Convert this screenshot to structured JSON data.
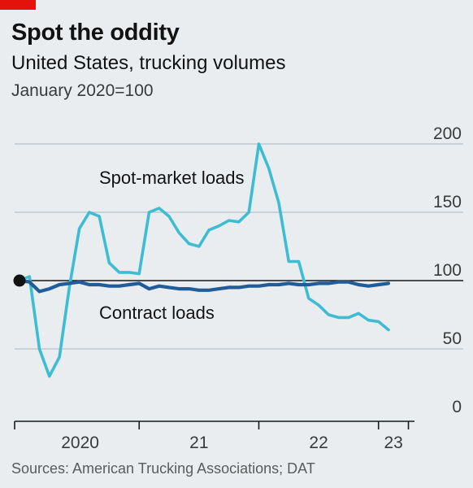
{
  "header": {
    "title": "Spot the oddity",
    "subtitle": "United States, trucking volumes",
    "unit_note": "January 2020=100"
  },
  "source": "Sources: American Trucking Associations; DAT",
  "colors": {
    "spot": "#3ebcd2",
    "contract": "#1f5c99",
    "brand_red": "#e3120b",
    "background": "#e9edf0"
  },
  "chart_data": {
    "type": "line",
    "title": "Spot the oddity",
    "subtitle": "United States, trucking volumes",
    "ylabel": "January 2020=100",
    "ylim": [
      0,
      200
    ],
    "yticks": [
      "0",
      "50",
      "100",
      "150",
      "200"
    ],
    "x_ticks": [
      "2020",
      "21",
      "22",
      "23"
    ],
    "x_range": [
      "2020-01",
      "2023-04"
    ],
    "reference_line": 100,
    "base_marker": {
      "x": "2020-01",
      "y": 100
    },
    "annotations": [
      "Spot-market loads",
      "Contract loads"
    ],
    "series": [
      {
        "name": "Spot-market loads",
        "color": "#3ebcd2",
        "points": [
          {
            "x": "2020-01",
            "y": 100
          },
          {
            "x": "2020-02",
            "y": 103
          },
          {
            "x": "2020-03",
            "y": 50
          },
          {
            "x": "2020-04",
            "y": 30
          },
          {
            "x": "2020-05",
            "y": 44
          },
          {
            "x": "2020-06",
            "y": 95
          },
          {
            "x": "2020-07",
            "y": 138
          },
          {
            "x": "2020-08",
            "y": 150
          },
          {
            "x": "2020-09",
            "y": 147
          },
          {
            "x": "2020-10",
            "y": 113
          },
          {
            "x": "2020-11",
            "y": 106
          },
          {
            "x": "2020-12",
            "y": 106
          },
          {
            "x": "2021-01",
            "y": 105
          },
          {
            "x": "2021-02",
            "y": 150
          },
          {
            "x": "2021-03",
            "y": 153
          },
          {
            "x": "2021-04",
            "y": 147
          },
          {
            "x": "2021-05",
            "y": 135
          },
          {
            "x": "2021-06",
            "y": 127
          },
          {
            "x": "2021-07",
            "y": 125
          },
          {
            "x": "2021-08",
            "y": 137
          },
          {
            "x": "2021-09",
            "y": 140
          },
          {
            "x": "2021-10",
            "y": 144
          },
          {
            "x": "2021-11",
            "y": 143
          },
          {
            "x": "2021-12",
            "y": 150
          },
          {
            "x": "2022-01",
            "y": 200
          },
          {
            "x": "2022-02",
            "y": 182
          },
          {
            "x": "2022-03",
            "y": 157
          },
          {
            "x": "2022-04",
            "y": 114
          },
          {
            "x": "2022-05",
            "y": 114
          },
          {
            "x": "2022-06",
            "y": 87
          },
          {
            "x": "2022-07",
            "y": 82
          },
          {
            "x": "2022-08",
            "y": 75
          },
          {
            "x": "2022-09",
            "y": 73
          },
          {
            "x": "2022-10",
            "y": 73
          },
          {
            "x": "2022-11",
            "y": 76
          },
          {
            "x": "2022-12",
            "y": 71
          },
          {
            "x": "2023-01",
            "y": 70
          },
          {
            "x": "2023-02",
            "y": 64
          }
        ]
      },
      {
        "name": "Contract loads",
        "color": "#1f5c99",
        "points": [
          {
            "x": "2020-01",
            "y": 100
          },
          {
            "x": "2020-02",
            "y": 99
          },
          {
            "x": "2020-03",
            "y": 92
          },
          {
            "x": "2020-04",
            "y": 94
          },
          {
            "x": "2020-05",
            "y": 97
          },
          {
            "x": "2020-06",
            "y": 98
          },
          {
            "x": "2020-07",
            "y": 99
          },
          {
            "x": "2020-08",
            "y": 97
          },
          {
            "x": "2020-09",
            "y": 97
          },
          {
            "x": "2020-10",
            "y": 96
          },
          {
            "x": "2020-11",
            "y": 96
          },
          {
            "x": "2020-12",
            "y": 97
          },
          {
            "x": "2021-01",
            "y": 98
          },
          {
            "x": "2021-02",
            "y": 94
          },
          {
            "x": "2021-03",
            "y": 96
          },
          {
            "x": "2021-04",
            "y": 95
          },
          {
            "x": "2021-05",
            "y": 94
          },
          {
            "x": "2021-06",
            "y": 94
          },
          {
            "x": "2021-07",
            "y": 93
          },
          {
            "x": "2021-08",
            "y": 93
          },
          {
            "x": "2021-09",
            "y": 94
          },
          {
            "x": "2021-10",
            "y": 95
          },
          {
            "x": "2021-11",
            "y": 95
          },
          {
            "x": "2021-12",
            "y": 96
          },
          {
            "x": "2022-01",
            "y": 96
          },
          {
            "x": "2022-02",
            "y": 97
          },
          {
            "x": "2022-03",
            "y": 97
          },
          {
            "x": "2022-04",
            "y": 98
          },
          {
            "x": "2022-05",
            "y": 97
          },
          {
            "x": "2022-06",
            "y": 97
          },
          {
            "x": "2022-07",
            "y": 98
          },
          {
            "x": "2022-08",
            "y": 98
          },
          {
            "x": "2022-09",
            "y": 99
          },
          {
            "x": "2022-10",
            "y": 99
          },
          {
            "x": "2022-11",
            "y": 97
          },
          {
            "x": "2022-12",
            "y": 96
          },
          {
            "x": "2023-01",
            "y": 97
          },
          {
            "x": "2023-02",
            "y": 98
          }
        ]
      }
    ]
  }
}
